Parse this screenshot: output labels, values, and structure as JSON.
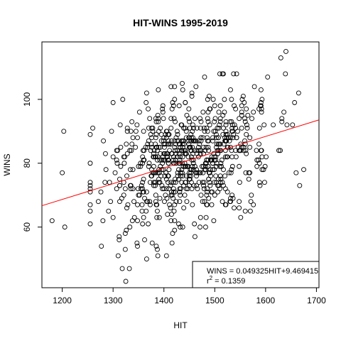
{
  "chart_data": {
    "type": "scatter",
    "title": "HIT-WINS 1995-2019",
    "xlabel": "HIT",
    "ylabel": "WINS",
    "xlim": [
      1160,
      1705
    ],
    "ylim": [
      41,
      118
    ],
    "xticks": [
      1200,
      1300,
      1400,
      1500,
      1600,
      1700
    ],
    "yticks": [
      60,
      80,
      100
    ],
    "grid": false,
    "marker": "open-circle",
    "regression": {
      "slope": 0.049325,
      "intercept": 9.469415,
      "color": "#ff0000",
      "equation_label": "WINS = 0.049325HIT+9.469415",
      "r2_label": "r",
      "r2_superscript": "2",
      "r2_value_label": " = 0.1359"
    },
    "legend_position": "bottom-right",
    "n_points": 750,
    "x_mean": 1445,
    "x_sd": 78,
    "y_mean": 81,
    "y_sd": 10.5,
    "notable_points": [
      [
        1180,
        62
      ],
      [
        1200,
        77
      ],
      [
        1205,
        60
      ],
      [
        1203,
        90
      ],
      [
        1325,
        43
      ],
      [
        1318,
        47
      ],
      [
        1332,
        47
      ],
      [
        1310,
        51
      ],
      [
        1630,
        113
      ],
      [
        1640,
        115
      ],
      [
        1405,
        51
      ],
      [
        1385,
        54
      ],
      [
        1675,
        78
      ],
      [
        1660,
        77
      ],
      [
        1667,
        73
      ]
    ]
  }
}
